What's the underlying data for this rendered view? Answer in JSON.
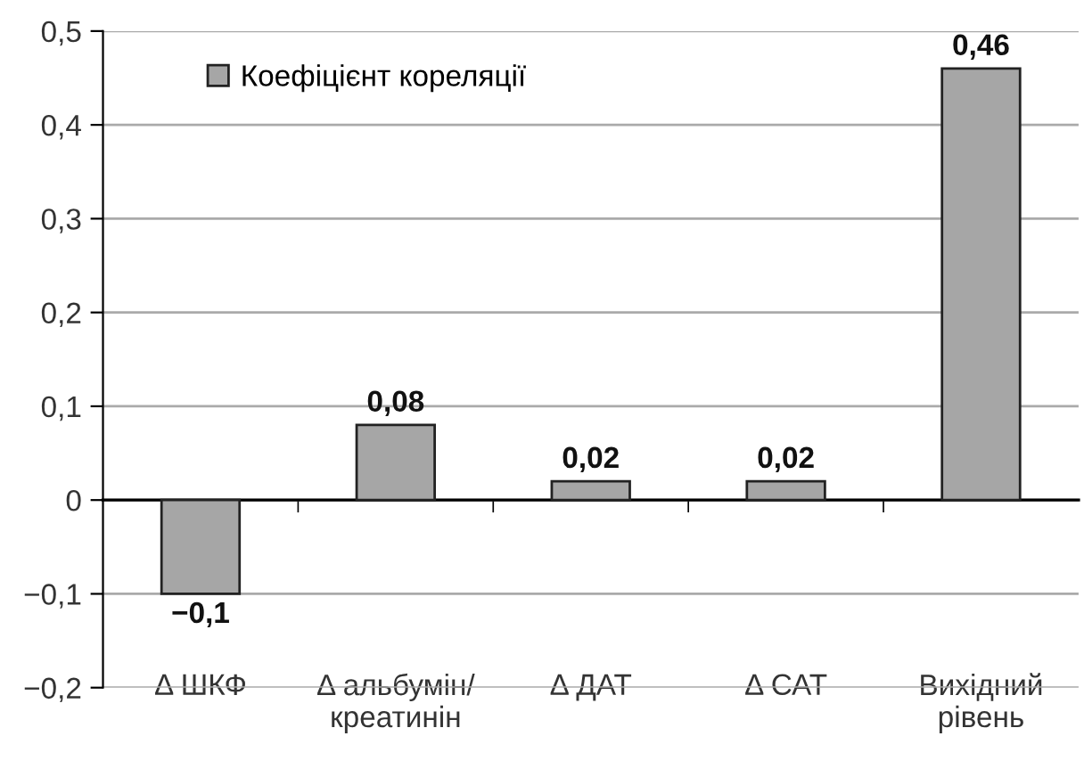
{
  "chart_data": {
    "type": "bar",
    "categories": [
      "Δ ШКФ",
      "Δ альбумін/\nкреатинін",
      "Δ ДАТ",
      "Δ САТ",
      "Вихідний\nрівень"
    ],
    "series": [
      {
        "name": "Коефіцієнт кореляції",
        "color": "#a6a6a6",
        "values": [
          -0.1,
          0.08,
          0.02,
          0.02,
          0.46
        ],
        "value_labels": [
          "−0,1",
          "0,08",
          "0,02",
          "0,02",
          "0,46"
        ]
      }
    ],
    "ylim": [
      -0.2,
      0.5
    ],
    "yticks": [
      {
        "value": -0.2,
        "label": "−0,2"
      },
      {
        "value": -0.1,
        "label": "−0,1"
      },
      {
        "value": 0,
        "label": "0"
      },
      {
        "value": 0.1,
        "label": "0,1"
      },
      {
        "value": 0.2,
        "label": "0,2"
      },
      {
        "value": 0.3,
        "label": "0,3"
      },
      {
        "value": 0.4,
        "label": "0,4"
      },
      {
        "value": 0.5,
        "label": "0,5"
      }
    ],
    "grid": "y",
    "legend": "top left"
  }
}
